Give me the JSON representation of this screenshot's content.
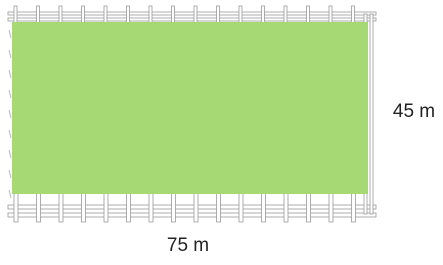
{
  "labels": {
    "height": "45 m",
    "width": "75 m"
  }
}
